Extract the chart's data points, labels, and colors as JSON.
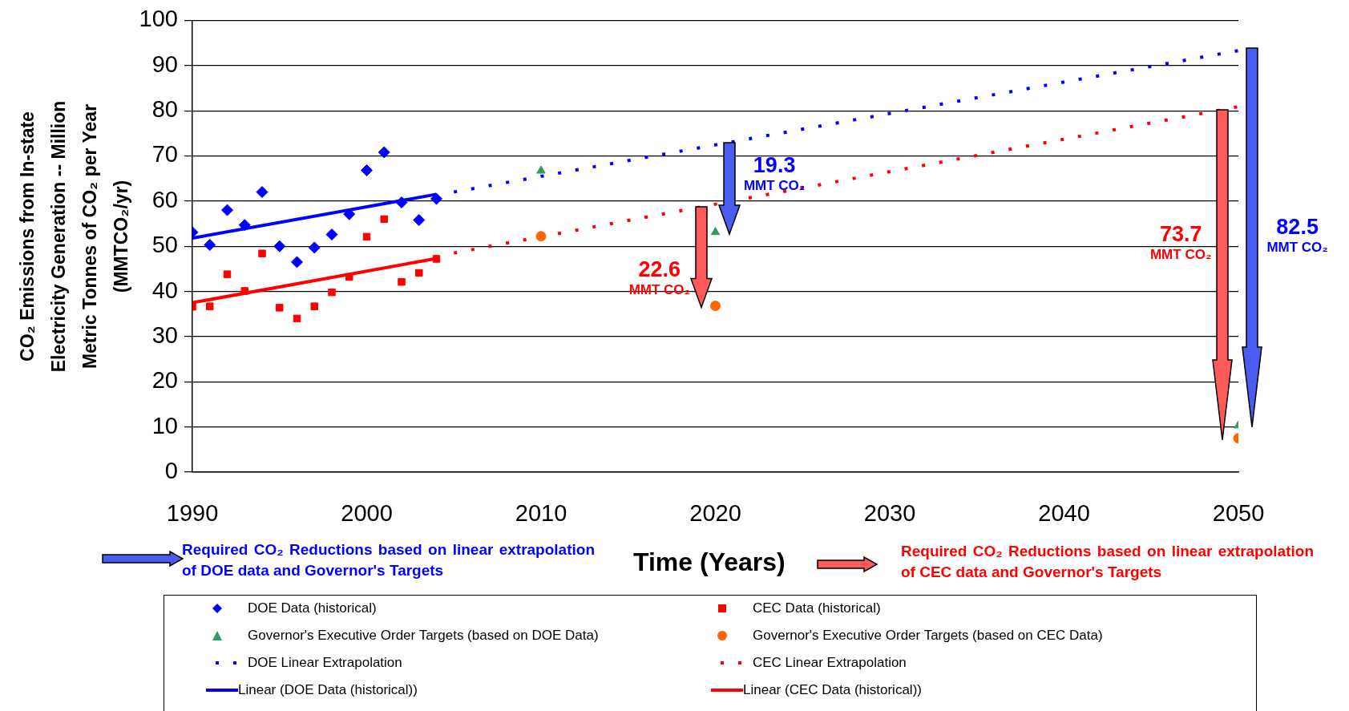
{
  "chart_data": {
    "type": "scatter",
    "ylabel": "CO₂ Emissions from In-state Electricity Generation -- Million Metric Tonnes of CO₂ per Year (MMTCO₂/yr)",
    "xlabel": "Time (Years)",
    "xlim": [
      1990,
      2050
    ],
    "xticks": [
      1990,
      2000,
      2010,
      2020,
      2030,
      2040,
      2050
    ],
    "ylim": [
      0,
      100
    ],
    "yticks": [
      0,
      10,
      20,
      30,
      40,
      50,
      60,
      70,
      80,
      90,
      100
    ],
    "grid": "y",
    "legend": "bottom",
    "series": [
      {
        "name": "DOE Data (historical)",
        "type": "scatter",
        "marker": "diamond",
        "color": "#0000ff",
        "x": [
          1990,
          1991,
          1992,
          1993,
          1994,
          1995,
          1996,
          1997,
          1998,
          1999,
          2000,
          2001,
          2002,
          2003,
          2004
        ],
        "values": [
          53.1,
          50.3,
          58.0,
          54.7,
          62.0,
          50.0,
          46.5,
          49.7,
          52.6,
          57.1,
          66.8,
          70.8,
          59.7,
          55.8,
          60.5
        ]
      },
      {
        "name": "CEC Data (historical)",
        "type": "scatter",
        "marker": "square",
        "color": "#ff0000",
        "x": [
          1990,
          1991,
          1992,
          1993,
          1994,
          1995,
          1996,
          1997,
          1998,
          1999,
          2000,
          2001,
          2002,
          2003,
          2004
        ],
        "values": [
          36.6,
          36.7,
          43.8,
          40.1,
          48.4,
          36.4,
          34.0,
          36.7,
          39.8,
          43.2,
          52.1,
          56.0,
          42.1,
          44.1,
          47.2
        ]
      },
      {
        "name": "Governor's Executive Order Targets (based on DOE Data)",
        "type": "scatter",
        "marker": "triangle",
        "color": "#339966",
        "x": [
          2010,
          2020,
          2050
        ],
        "values": [
          66.7,
          53.1,
          10.3
        ]
      },
      {
        "name": "Governor's Executive Order Targets (based on CEC Data)",
        "type": "scatter",
        "marker": "circle",
        "color": "#ff6600",
        "x": [
          2010,
          2020,
          2050
        ],
        "values": [
          52.2,
          36.8,
          7.5
        ]
      },
      {
        "name": "DOE Linear Extrapolation",
        "type": "line",
        "line_style": "dotted",
        "color": "#0000ff",
        "x": [
          2005,
          2050
        ],
        "values": [
          62.0,
          93.3
        ]
      },
      {
        "name": "CEC Linear Extrapolation",
        "type": "line",
        "line_style": "dotted",
        "color": "#ff0000",
        "x": [
          2005,
          2050
        ],
        "values": [
          48.5,
          80.9
        ]
      },
      {
        "name": "Linear (DOE Data (historical))",
        "type": "line",
        "line_style": "solid",
        "color": "#0000ff",
        "x": [
          1990,
          2004
        ],
        "values": [
          51.8,
          61.5
        ]
      },
      {
        "name": "Linear (CEC Data (historical))",
        "type": "line",
        "line_style": "solid",
        "color": "#ff0000",
        "x": [
          1990,
          2004
        ],
        "values": [
          37.5,
          47.3
        ]
      }
    ],
    "annotations": [
      "19.3 MMT CO₂",
      "22.6 MMT CO₂",
      "73.7 MMT CO₂",
      "82.5 MMT CO₂",
      "Required CO₂ Reductions based on linear extrapolation of DOE data and Governor's Targets",
      "Required CO₂ Reductions based on linear extrapolation of CEC data and Governor's Targets"
    ]
  }
}
